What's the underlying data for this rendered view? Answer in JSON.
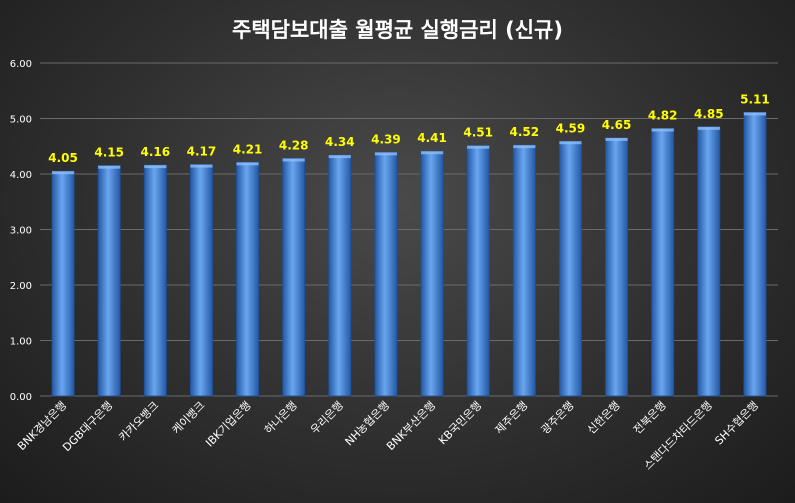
{
  "chart_data": {
    "type": "bar",
    "title": "주택담보대출 월평균 실행금리 (신규)",
    "xlabel": "",
    "ylabel": "",
    "ylim": [
      0,
      6
    ],
    "yticks": [
      "0.00",
      "1.00",
      "2.00",
      "3.00",
      "4.00",
      "5.00",
      "6.00"
    ],
    "categories": [
      "BNK경남은행",
      "DGB대구은행",
      "카카오뱅크",
      "케이뱅크",
      "IBK기업은행",
      "하나은행",
      "우리은행",
      "NH농협은행",
      "BNK부산은행",
      "KB국민은행",
      "제주은행",
      "광주은행",
      "신한은행",
      "전북은행",
      "스탠다드차타드은행",
      "SH수협은행"
    ],
    "values": [
      4.05,
      4.15,
      4.16,
      4.17,
      4.21,
      4.28,
      4.34,
      4.39,
      4.41,
      4.51,
      4.52,
      4.59,
      4.65,
      4.82,
      4.85,
      5.11
    ],
    "labels": [
      "4.05",
      "4.15",
      "4.16",
      "4.17",
      "4.21",
      "4.28",
      "4.34",
      "4.39",
      "4.41",
      "4.51",
      "4.52",
      "4.59",
      "4.65",
      "4.82",
      "4.85",
      "5.11"
    ],
    "grid": true,
    "legend": "none",
    "colors": {
      "bar": "#3e7fd4",
      "bar_light": "#6aa6ef",
      "bar_dark": "#2358a6",
      "label": "#ffff00",
      "grid": "#6a6a6a",
      "text": "#ffffff"
    }
  }
}
